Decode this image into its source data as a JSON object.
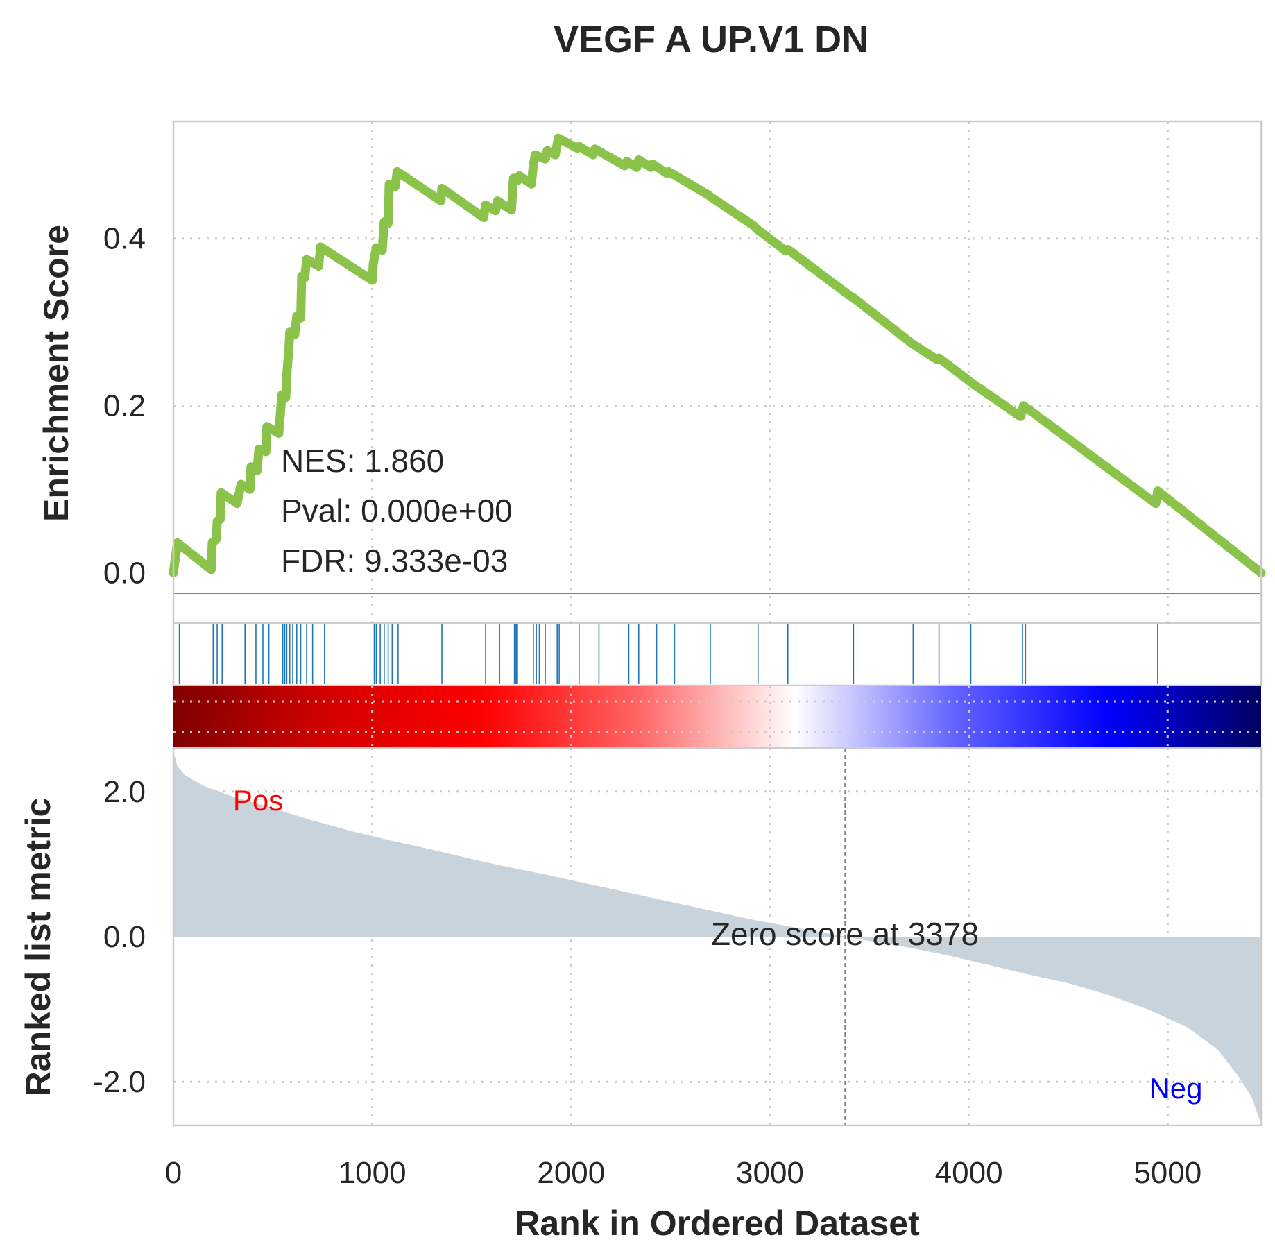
{
  "chart_data": {
    "type": "line",
    "title": "VEGF A UP.V1 DN",
    "xlabel": "Rank in Ordered Dataset",
    "xlim": [
      0,
      5470
    ],
    "xticks": [
      "0",
      "1000",
      "2000",
      "3000",
      "4000",
      "5000"
    ],
    "grid": true,
    "enrichment": {
      "ylabel": "Enrichment Score",
      "ylim": [
        -0.06,
        0.54
      ],
      "yticks": [
        "0.0",
        "0.2",
        "0.4"
      ],
      "line_color": "#8bc34a",
      "points": [
        [
          0,
          0.0
        ],
        [
          20,
          0.036
        ],
        [
          190,
          0.004
        ],
        [
          195,
          0.036
        ],
        [
          215,
          0.04
        ],
        [
          220,
          0.062
        ],
        [
          235,
          0.064
        ],
        [
          240,
          0.096
        ],
        [
          320,
          0.083
        ],
        [
          340,
          0.106
        ],
        [
          385,
          0.1
        ],
        [
          390,
          0.127
        ],
        [
          420,
          0.122
        ],
        [
          430,
          0.148
        ],
        [
          465,
          0.145
        ],
        [
          470,
          0.175
        ],
        [
          530,
          0.167
        ],
        [
          540,
          0.197
        ],
        [
          545,
          0.213
        ],
        [
          565,
          0.21
        ],
        [
          570,
          0.238
        ],
        [
          580,
          0.265
        ],
        [
          585,
          0.288
        ],
        [
          610,
          0.285
        ],
        [
          620,
          0.307
        ],
        [
          640,
          0.305
        ],
        [
          645,
          0.355
        ],
        [
          660,
          0.353
        ],
        [
          670,
          0.375
        ],
        [
          730,
          0.367
        ],
        [
          740,
          0.39
        ],
        [
          1000,
          0.35
        ],
        [
          1005,
          0.37
        ],
        [
          1020,
          0.389
        ],
        [
          1050,
          0.386
        ],
        [
          1060,
          0.42
        ],
        [
          1080,
          0.418
        ],
        [
          1085,
          0.465
        ],
        [
          1115,
          0.462
        ],
        [
          1125,
          0.48
        ],
        [
          1345,
          0.445
        ],
        [
          1350,
          0.46
        ],
        [
          1560,
          0.425
        ],
        [
          1570,
          0.44
        ],
        [
          1620,
          0.433
        ],
        [
          1630,
          0.445
        ],
        [
          1700,
          0.434
        ],
        [
          1710,
          0.472
        ],
        [
          1730,
          0.469
        ],
        [
          1740,
          0.475
        ],
        [
          1800,
          0.465
        ],
        [
          1810,
          0.488
        ],
        [
          1820,
          0.5
        ],
        [
          1870,
          0.495
        ],
        [
          1880,
          0.505
        ],
        [
          1920,
          0.5
        ],
        [
          1935,
          0.52
        ],
        [
          2030,
          0.508
        ],
        [
          2040,
          0.51
        ],
        [
          2110,
          0.5
        ],
        [
          2120,
          0.507
        ],
        [
          2270,
          0.487
        ],
        [
          2280,
          0.492
        ],
        [
          2330,
          0.485
        ],
        [
          2340,
          0.494
        ],
        [
          2400,
          0.485
        ],
        [
          2410,
          0.489
        ],
        [
          2480,
          0.478
        ],
        [
          2490,
          0.48
        ],
        [
          2690,
          0.452
        ],
        [
          2700,
          0.45
        ],
        [
          2920,
          0.415
        ],
        [
          2930,
          0.412
        ],
        [
          3080,
          0.385
        ],
        [
          3090,
          0.387
        ],
        [
          3410,
          0.33
        ],
        [
          3420,
          0.329
        ],
        [
          3700,
          0.277
        ],
        [
          3710,
          0.275
        ],
        [
          3840,
          0.255
        ],
        [
          3850,
          0.257
        ],
        [
          4000,
          0.23
        ],
        [
          4010,
          0.228
        ],
        [
          4260,
          0.187
        ],
        [
          4275,
          0.2
        ],
        [
          4940,
          0.083
        ],
        [
          4950,
          0.098
        ],
        [
          5470,
          0.0
        ]
      ]
    },
    "hits": [
      30,
      200,
      220,
      245,
      360,
      415,
      450,
      480,
      550,
      560,
      570,
      585,
      600,
      620,
      640,
      670,
      700,
      760,
      1010,
      1020,
      1040,
      1060,
      1080,
      1100,
      1130,
      1350,
      1570,
      1640,
      1715,
      1720,
      1725,
      1730,
      1810,
      1825,
      1840,
      1870,
      1930,
      1940,
      2040,
      2140,
      2290,
      2340,
      2430,
      2520,
      2700,
      2940,
      3090,
      3420,
      3720,
      3850,
      4010,
      4270,
      4285,
      4950
    ],
    "ranked": {
      "ylabel": "Ranked list metric",
      "ylim": [
        -2.6,
        2.6
      ],
      "yticks": [
        "2.0",
        "0.0",
        "-2.0"
      ],
      "fill_color": "#c8d3dc",
      "points": [
        [
          0,
          2.55
        ],
        [
          20,
          2.35
        ],
        [
          60,
          2.22
        ],
        [
          150,
          2.08
        ],
        [
          300,
          1.93
        ],
        [
          500,
          1.77
        ],
        [
          700,
          1.6
        ],
        [
          900,
          1.45
        ],
        [
          1100,
          1.32
        ],
        [
          1300,
          1.2
        ],
        [
          1500,
          1.07
        ],
        [
          1700,
          0.95
        ],
        [
          1900,
          0.84
        ],
        [
          2100,
          0.72
        ],
        [
          2300,
          0.6
        ],
        [
          2500,
          0.48
        ],
        [
          2700,
          0.36
        ],
        [
          2900,
          0.24
        ],
        [
          3100,
          0.14
        ],
        [
          3300,
          0.04
        ],
        [
          3378,
          0.0
        ],
        [
          3500,
          -0.06
        ],
        [
          3700,
          -0.15
        ],
        [
          3900,
          -0.26
        ],
        [
          4100,
          -0.39
        ],
        [
          4300,
          -0.52
        ],
        [
          4500,
          -0.64
        ],
        [
          4700,
          -0.8
        ],
        [
          4900,
          -1.0
        ],
        [
          5100,
          -1.25
        ],
        [
          5250,
          -1.55
        ],
        [
          5350,
          -1.9
        ],
        [
          5420,
          -2.2
        ],
        [
          5460,
          -2.5
        ],
        [
          5470,
          -2.6
        ]
      ],
      "zero_cross": 3378
    },
    "colorbar": {
      "gradient": [
        "#800000",
        "#d40000",
        "#ff0000",
        "#ff6666",
        "#ffffff",
        "#6666ff",
        "#0000ff",
        "#000060"
      ]
    },
    "annotations": {
      "nes": "NES: 1.860",
      "pval": "Pval: 0.000e+00",
      "fdr": "FDR: 9.333e-03",
      "zero_score": "Zero score at 3378",
      "pos": "Pos",
      "neg": "Neg",
      "pos_color": "#ff0000",
      "neg_color": "#0000ff"
    }
  }
}
